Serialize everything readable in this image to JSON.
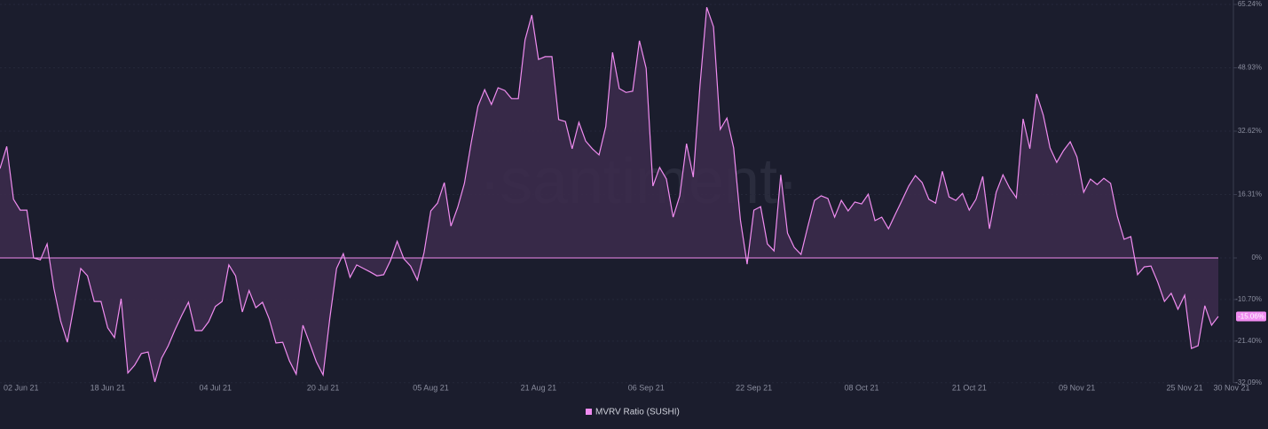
{
  "chart_data": {
    "type": "area",
    "watermark": "·santiment·",
    "categories": [
      "02 Jun 21",
      null,
      null,
      null,
      null,
      null,
      null,
      null,
      null,
      null,
      null,
      null,
      null,
      null,
      null,
      null,
      "18 Jun 21",
      null,
      null,
      null,
      null,
      null,
      null,
      null,
      null,
      null,
      null,
      null,
      null,
      null,
      null,
      null,
      "04 Jul 21",
      null,
      null,
      null,
      null,
      null,
      null,
      null,
      null,
      null,
      null,
      null,
      null,
      null,
      null,
      null,
      "20 Jul 21",
      null,
      null,
      null,
      null,
      null,
      null,
      null,
      null,
      null,
      null,
      null,
      null,
      null,
      null,
      null,
      "05 Aug 21",
      null,
      null,
      null,
      null,
      null,
      null,
      null,
      null,
      null,
      null,
      null,
      null,
      null,
      null,
      null,
      "21 Aug 21",
      null,
      null,
      null,
      null,
      null,
      null,
      null,
      null,
      null,
      null,
      null,
      null,
      null,
      null,
      null,
      "06 Sep 21",
      null,
      null,
      null,
      null,
      null,
      null,
      null,
      null,
      null,
      null,
      null,
      null,
      null,
      null,
      null,
      "22 Sep 21",
      null,
      null,
      null,
      null,
      null,
      null,
      null,
      null,
      null,
      null,
      null,
      null,
      null,
      null,
      null,
      "08 Oct 21",
      null,
      null,
      null,
      null,
      null,
      null,
      null,
      null,
      null,
      null,
      null,
      null,
      null,
      null,
      null,
      "21 Oct 21",
      null,
      null,
      null,
      null,
      null,
      null,
      null,
      null,
      null,
      null,
      null,
      null,
      null,
      null,
      null,
      "09 Nov 21",
      null,
      null,
      null,
      null,
      null,
      null,
      null,
      null,
      null,
      null,
      null,
      null,
      null,
      null,
      null,
      "25 Nov 21",
      null,
      null,
      null,
      null,
      "30 Nov 21"
    ],
    "series": [
      {
        "name": "MVRV Ratio (SUSHI)",
        "color": "#f08cf0",
        "fill": "#3b2b4b",
        "values": [
          23.0,
          28.7,
          15.1,
          12.3,
          12.3,
          0,
          -0.5,
          3.6,
          -7.8,
          -16.2,
          -21.7,
          -12.3,
          -2.7,
          -4.6,
          -11.2,
          -11.2,
          -18.0,
          -20.5,
          -10.5,
          -29.6,
          -27.6,
          -24.6,
          -24.2,
          -31.9,
          -25.8,
          -22.6,
          -18.5,
          -14.8,
          -11.4,
          -18.7,
          -18.7,
          -16.4,
          -12.5,
          -11.2,
          -1.8,
          -4.6,
          -13.9,
          -8.4,
          -12.8,
          -11.4,
          -15.7,
          -21.9,
          -21.7,
          -26.5,
          -29.9,
          -17.3,
          -21.9,
          -26.7,
          -30.1,
          -15.5,
          -2.7,
          1.1,
          -5.0,
          -1.8,
          -2.7,
          -3.6,
          -4.6,
          -4.3,
          -0.7,
          4.3,
          -0.2,
          -2.1,
          -5.7,
          1.4,
          12.1,
          14.1,
          19.4,
          8.2,
          13.0,
          19.2,
          29.6,
          39.0,
          43.3,
          39.5,
          43.8,
          43.1,
          41.0,
          41.0,
          56.1,
          62.5,
          51.1,
          51.8,
          51.8,
          35.6,
          35.1,
          28.1,
          34.9,
          30.1,
          28.1,
          26.5,
          33.8,
          52.9,
          43.6,
          42.6,
          42.9,
          55.9,
          48.8,
          18.5,
          23.3,
          20.3,
          10.5,
          16.0,
          29.4,
          20.8,
          44.5,
          64.5,
          59.5,
          33.1,
          36.0,
          28.3,
          9.8,
          -1.6,
          12.3,
          13.2,
          3.6,
          1.8,
          21.4,
          6.4,
          2.7,
          0.9,
          8.0,
          14.8,
          16.0,
          15.3,
          10.5,
          14.8,
          12.1,
          14.4,
          13.9,
          16.4,
          9.6,
          10.5,
          7.5,
          11.2,
          14.8,
          18.5,
          21.2,
          19.4,
          15.1,
          14.1,
          22.3,
          15.7,
          14.8,
          16.6,
          12.3,
          15.1,
          21.0,
          7.5,
          16.9,
          21.4,
          18.0,
          15.5,
          35.8,
          28.1,
          42.2,
          36.7,
          28.3,
          24.6,
          27.6,
          29.9,
          26.0,
          16.9,
          20.3,
          18.9,
          20.5,
          19.2,
          10.7,
          4.8,
          5.5,
          -4.3,
          -2.3,
          -2.1,
          -6.2,
          -11.2,
          -9.1,
          -13.2,
          -9.6,
          -23.3,
          -22.6,
          -12.3,
          -17.3,
          -15.06
        ],
        "last_value_label": "-15.06%"
      }
    ],
    "ylim": [
      -32.09,
      65.24
    ],
    "yticks": [
      {
        "value": 65.24,
        "label": "65.24%"
      },
      {
        "value": 48.93,
        "label": "48.93%"
      },
      {
        "value": 32.62,
        "label": "32.62%"
      },
      {
        "value": 16.31,
        "label": "16.31%"
      },
      {
        "value": 0,
        "label": "0%"
      },
      {
        "value": -10.7,
        "label": "-10.70%"
      },
      {
        "value": -21.4,
        "label": "-21.40%"
      },
      {
        "value": -32.09,
        "label": "-32.09%"
      }
    ],
    "grid": true
  }
}
